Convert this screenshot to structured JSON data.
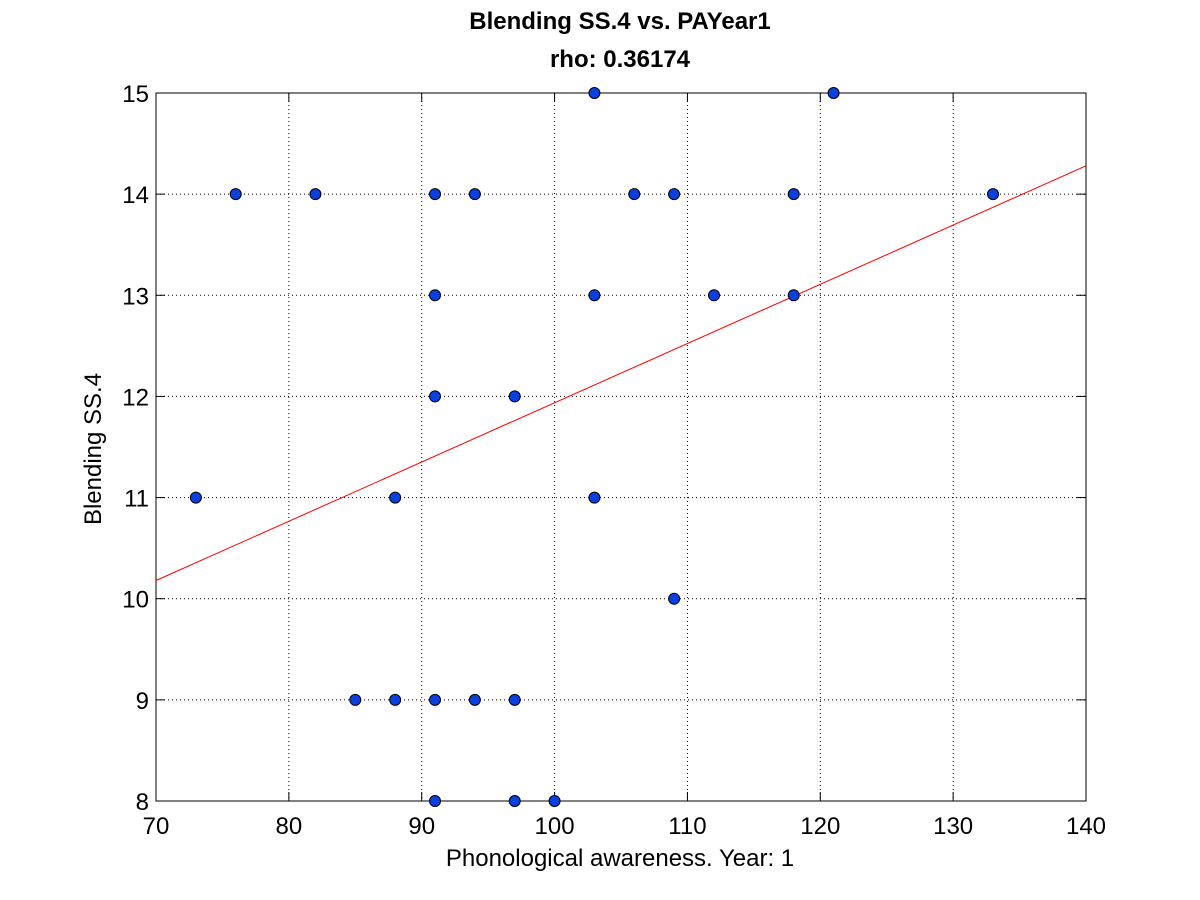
{
  "chart_data": {
    "type": "scatter",
    "title": "Blending SS.4 vs. PAYear1",
    "subtitle": "rho: 0.36174",
    "xlabel": "Phonological awareness. Year: 1",
    "ylabel": "Blending SS.4",
    "xlim": [
      70,
      140
    ],
    "ylim": [
      8,
      15
    ],
    "x_ticks": [
      70,
      80,
      90,
      100,
      110,
      120,
      130,
      140
    ],
    "y_ticks": [
      8,
      9,
      10,
      11,
      12,
      13,
      14,
      15
    ],
    "grid": true,
    "colors": {
      "marker_fill": "#0a3fe0",
      "marker_edge": "#000000",
      "fit_line": "#ff0000",
      "grid": "#000000"
    },
    "points": [
      [
        103,
        15
      ],
      [
        121,
        15
      ],
      [
        76,
        14
      ],
      [
        82,
        14
      ],
      [
        91,
        14
      ],
      [
        94,
        14
      ],
      [
        106,
        14
      ],
      [
        109,
        14
      ],
      [
        118,
        14
      ],
      [
        133,
        14
      ],
      [
        91,
        13
      ],
      [
        103,
        13
      ],
      [
        112,
        13
      ],
      [
        118,
        13
      ],
      [
        91,
        12
      ],
      [
        97,
        12
      ],
      [
        73,
        11
      ],
      [
        88,
        11
      ],
      [
        103,
        11
      ],
      [
        109,
        10
      ],
      [
        85,
        9
      ],
      [
        88,
        9
      ],
      [
        91,
        9
      ],
      [
        94,
        9
      ],
      [
        97,
        9
      ],
      [
        91,
        8
      ],
      [
        97,
        8
      ],
      [
        100,
        8
      ]
    ],
    "fit_line": {
      "x": [
        70,
        140
      ],
      "y": [
        10.18,
        14.28
      ]
    }
  }
}
